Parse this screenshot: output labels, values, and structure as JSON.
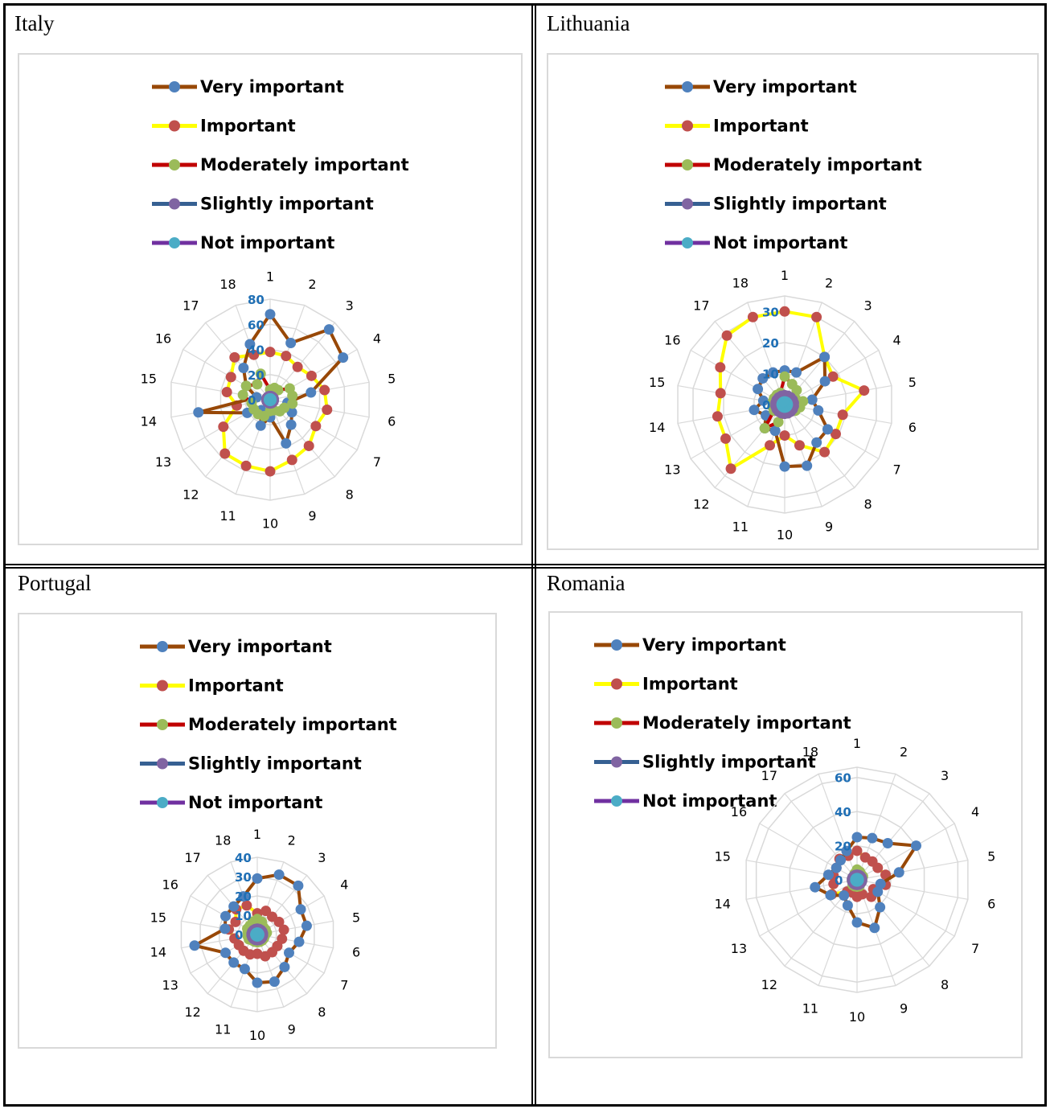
{
  "categories": [
    "1",
    "2",
    "3",
    "4",
    "5",
    "6",
    "7",
    "8",
    "9",
    "10",
    "11",
    "12",
    "13",
    "14",
    "15",
    "16",
    "17",
    "18"
  ],
  "series_style": [
    {
      "name": "Very important",
      "line": "#984807",
      "marker": "#4f81bd"
    },
    {
      "name": "Important",
      "line": "#ffff00",
      "marker": "#c0504d"
    },
    {
      "name": "Moderately important",
      "line": "#c00000",
      "marker": "#9bbb59"
    },
    {
      "name": "Slightly important",
      "line": "#366092",
      "marker": "#8064a2"
    },
    {
      "name": "Not important",
      "line": "#7030a0",
      "marker": "#4bacc6"
    }
  ],
  "chart_data": [
    {
      "type": "radar",
      "country": "Italy",
      "ticks": [
        "0",
        "20",
        "40",
        "60",
        "80"
      ],
      "rmax": 80,
      "series": [
        {
          "name": "Very important",
          "values": [
            68,
            48,
            73,
            67,
            33,
            14,
            20,
            26,
            37,
            14,
            22,
            11,
            21,
            58,
            11,
            22,
            33,
            47
          ]
        },
        {
          "name": "Important",
          "values": [
            38,
            37,
            34,
            38,
            44,
            46,
            42,
            48,
            51,
            57,
            56,
            56,
            43,
            27,
            35,
            36,
            44,
            38
          ]
        },
        {
          "name": "Moderately important",
          "values": [
            8,
            10,
            10,
            18,
            18,
            18,
            13,
            12,
            9,
            9,
            14,
            15,
            15,
            15,
            22,
            22,
            16,
            22
          ]
        },
        {
          "name": "Slightly important",
          "values": [
            3,
            3,
            3,
            3,
            3,
            3,
            3,
            3,
            3,
            3,
            3,
            3,
            3,
            3,
            3,
            3,
            3,
            3
          ]
        },
        {
          "name": "Not important",
          "values": [
            1,
            1,
            1,
            1,
            1,
            1,
            1,
            1,
            1,
            1,
            1,
            1,
            1,
            1,
            1,
            1,
            1,
            1
          ]
        }
      ]
    },
    {
      "type": "radar",
      "country": "Lithuania",
      "ticks": [
        "0",
        "10",
        "20",
        "30"
      ],
      "rmax": 35,
      "series": [
        {
          "name": "Very important",
          "values": [
            11,
            11,
            20,
            15,
            9,
            11,
            16,
            16,
            21,
            20,
            9,
            10,
            7,
            10,
            7,
            10,
            11,
            11
          ]
        },
        {
          "name": "Important",
          "values": [
            30,
            30,
            20,
            18,
            26,
            19,
            19,
            20,
            14,
            10,
            14,
            27,
            22,
            22,
            21,
            24,
            29,
            30
          ]
        },
        {
          "name": "Moderately important",
          "values": [
            9,
            7,
            6,
            4,
            6,
            5,
            4,
            3,
            3,
            3,
            6,
            10,
            4,
            4,
            4,
            4,
            4,
            4
          ]
        },
        {
          "name": "Slightly important",
          "values": [
            3,
            3,
            3,
            3,
            3,
            3,
            3,
            3,
            3,
            3,
            3,
            3,
            3,
            3,
            3,
            3,
            3,
            3
          ]
        },
        {
          "name": "Not important",
          "values": [
            1,
            1,
            1,
            1,
            1,
            1,
            1,
            1,
            1,
            1,
            1,
            1,
            1,
            1,
            1,
            1,
            1,
            1
          ]
        }
      ]
    },
    {
      "type": "radar",
      "country": "Portugal",
      "ticks": [
        "0",
        "10",
        "20",
        "30",
        "40"
      ],
      "rmax": 40,
      "series": [
        {
          "name": "Very important",
          "values": [
            29,
            33,
            33,
            26,
            26,
            22,
            19,
            22,
            26,
            25,
            19,
            19,
            19,
            33,
            17,
            19,
            19,
            21
          ]
        },
        {
          "name": "Important",
          "values": [
            11,
            13,
            12,
            13,
            14,
            13,
            12,
            12,
            12,
            10,
            11,
            11,
            11,
            12,
            15,
            13,
            17,
            16
          ]
        },
        {
          "name": "Moderately important",
          "values": [
            8,
            7,
            5,
            5,
            5,
            4,
            4,
            4,
            4,
            4,
            4,
            4,
            5,
            5,
            5,
            6,
            6,
            7
          ]
        },
        {
          "name": "Slightly important",
          "values": [
            3,
            3,
            3,
            3,
            3,
            3,
            3,
            3,
            3,
            3,
            3,
            3,
            3,
            3,
            3,
            3,
            3,
            3
          ]
        },
        {
          "name": "Not important",
          "values": [
            1,
            1,
            1,
            1,
            1,
            1,
            1,
            1,
            1,
            1,
            1,
            1,
            1,
            1,
            1,
            1,
            1,
            1
          ]
        }
      ]
    },
    {
      "type": "radar",
      "country": "Romania",
      "ticks": [
        "0",
        "20",
        "40",
        "60"
      ],
      "rmax": 66,
      "series": [
        {
          "name": "Very important",
          "values": [
            25,
            26,
            28,
            40,
            25,
            14,
            14,
            21,
            30,
            25,
            16,
            12,
            18,
            25,
            17,
            14,
            15,
            18
          ]
        },
        {
          "name": "Important",
          "values": [
            17,
            14,
            14,
            14,
            17,
            17,
            11,
            13,
            9,
            10,
            8,
            9,
            17,
            14,
            14,
            14,
            16,
            15
          ]
        },
        {
          "name": "Moderately important",
          "values": [
            6,
            5,
            4,
            4,
            3,
            3,
            3,
            3,
            4,
            4,
            4,
            4,
            3,
            3,
            3,
            3,
            3,
            4
          ]
        },
        {
          "name": "Slightly important",
          "values": [
            3,
            3,
            3,
            3,
            3,
            3,
            3,
            3,
            3,
            3,
            3,
            3,
            3,
            3,
            3,
            3,
            3,
            3
          ]
        },
        {
          "name": "Not important",
          "values": [
            1,
            1,
            1,
            1,
            1,
            1,
            1,
            1,
            1,
            1,
            1,
            1,
            1,
            1,
            1,
            1,
            1,
            1
          ]
        }
      ]
    }
  ]
}
